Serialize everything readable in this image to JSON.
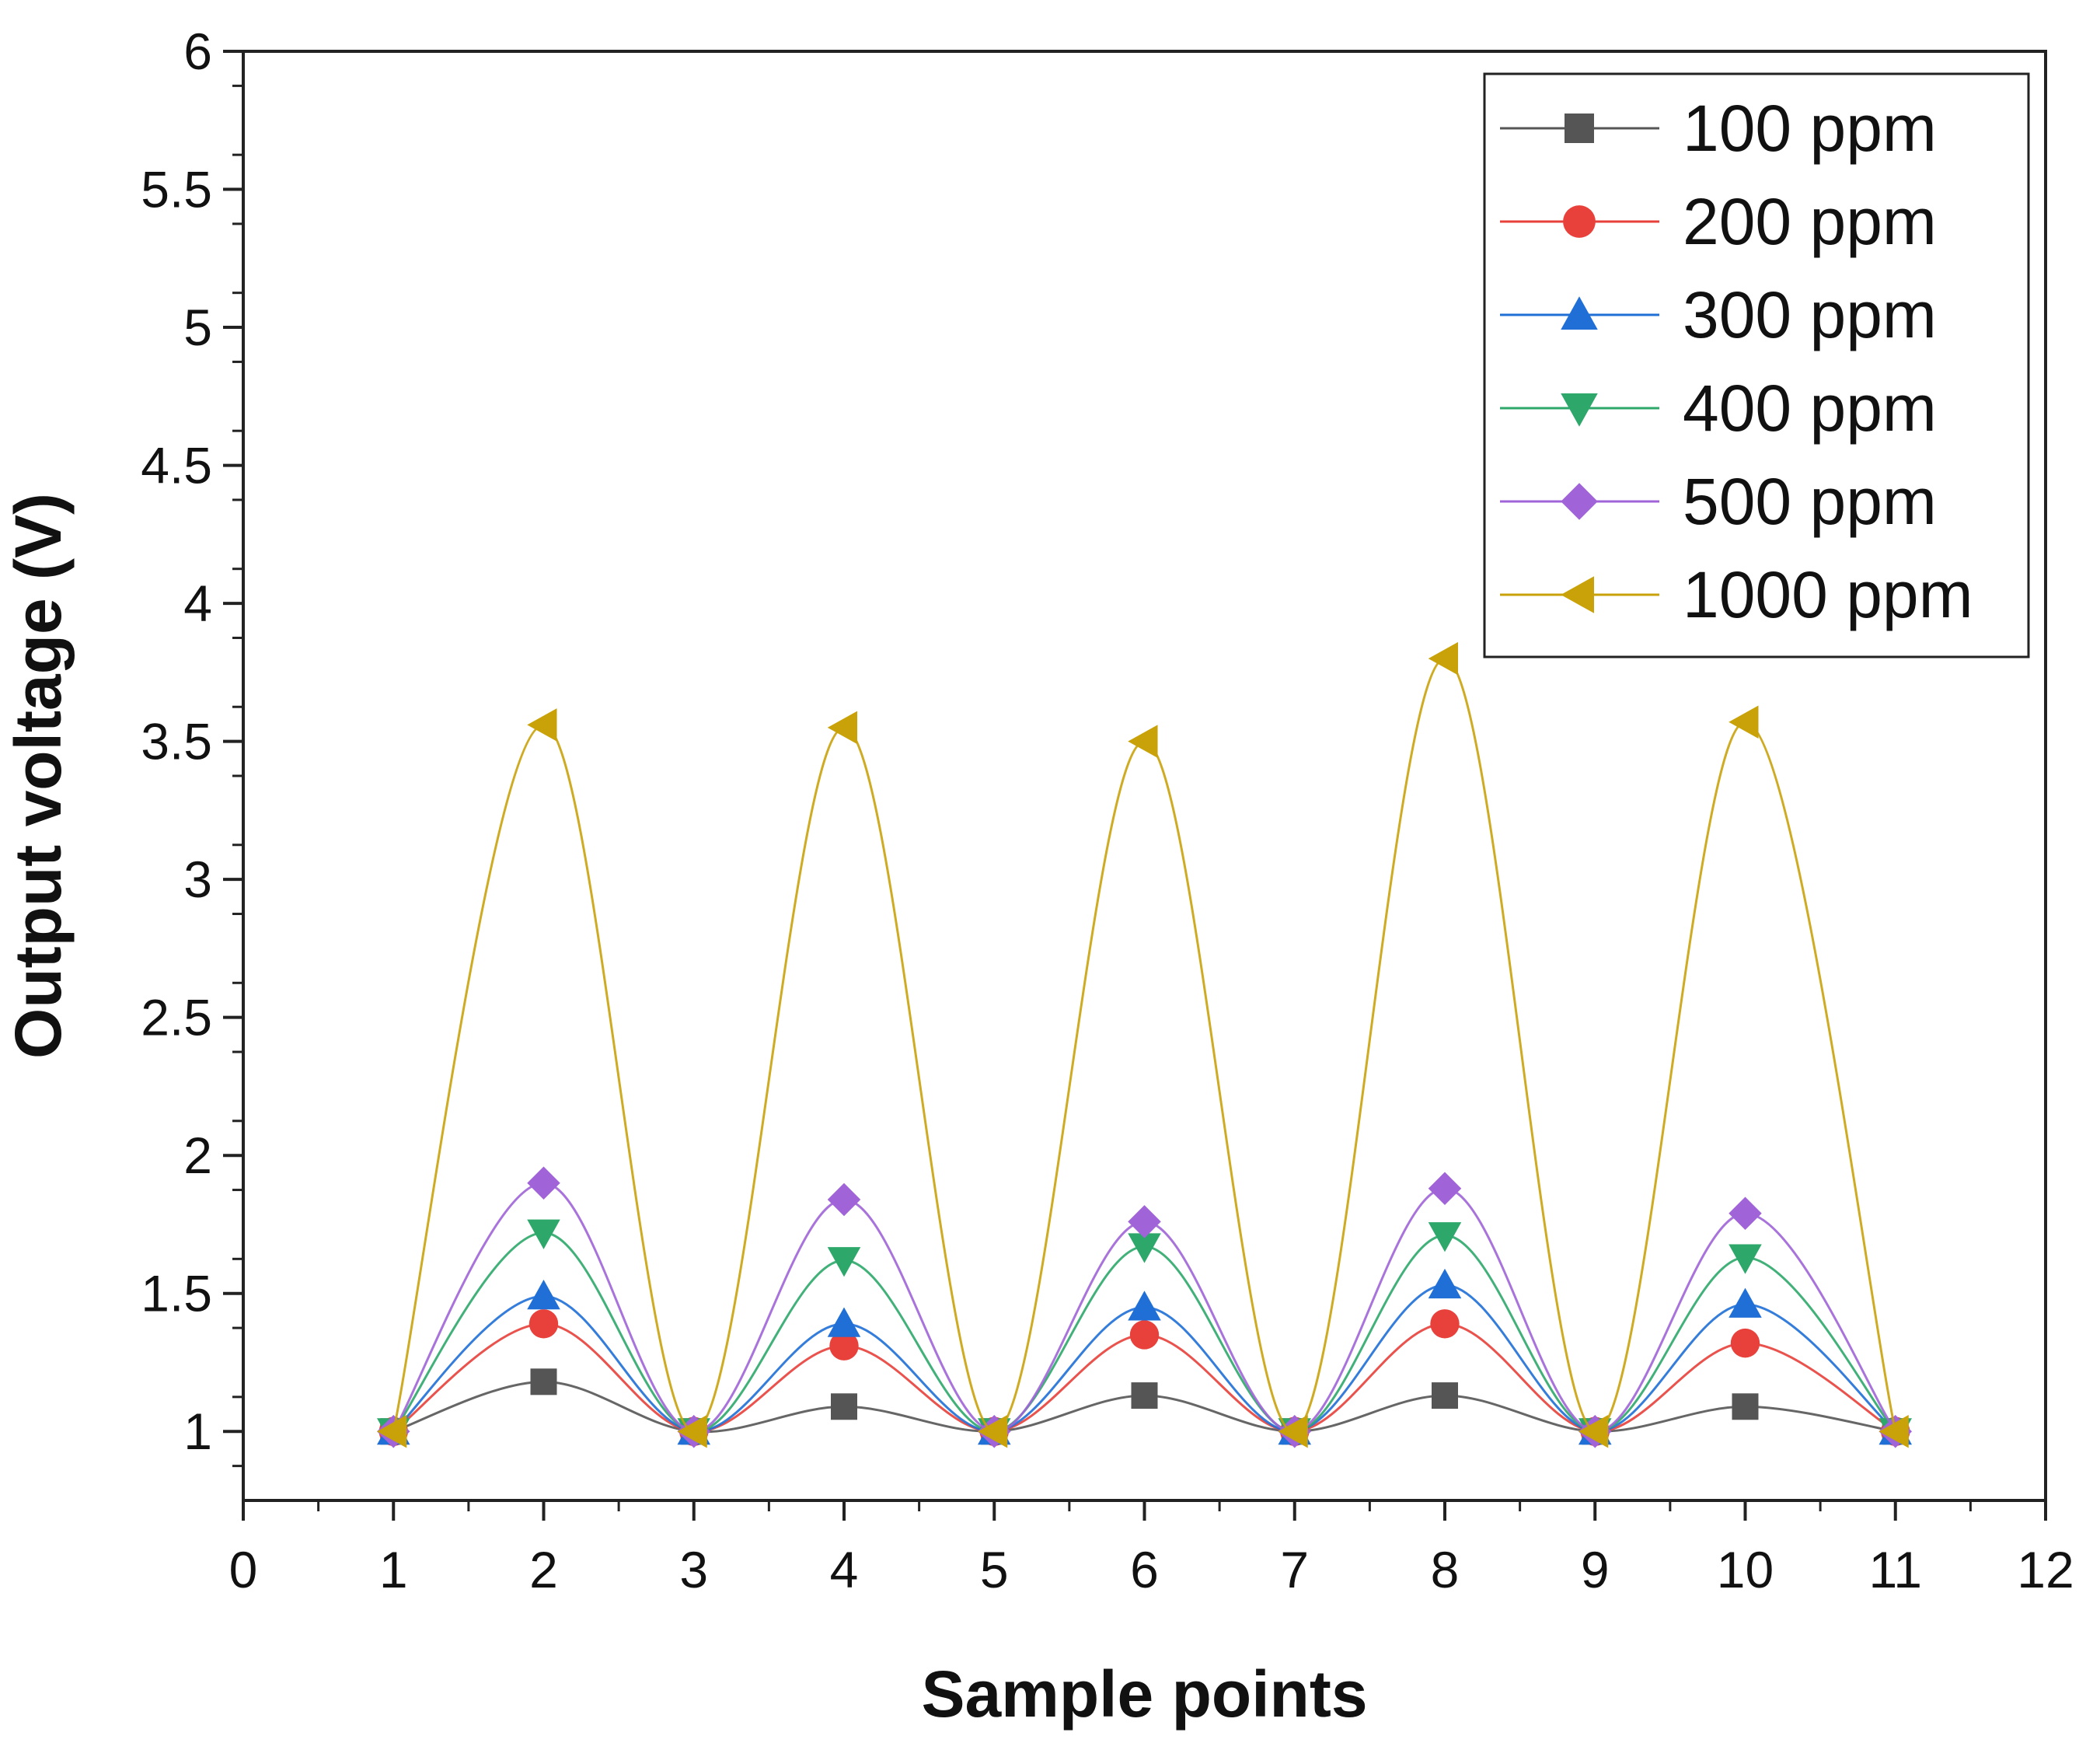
{
  "chart_data": {
    "type": "line",
    "title": "",
    "xlabel": "Sample points",
    "ylabel": "Output voltage (V)",
    "xlim": [
      0,
      12
    ],
    "ylim": [
      0.75,
      6
    ],
    "x_ticks": [
      "0",
      "1",
      "2",
      "3",
      "4",
      "5",
      "6",
      "7",
      "8",
      "9",
      "10",
      "11",
      "12"
    ],
    "y_ticks": [
      "1",
      "1.5",
      "2",
      "2.5",
      "3",
      "3.5",
      "4",
      "4.5",
      "5",
      "5.5",
      "6"
    ],
    "grid": false,
    "legend_position": "top-right",
    "x": [
      1,
      2,
      3,
      4,
      5,
      6,
      7,
      8,
      9,
      10,
      11
    ],
    "series": [
      {
        "name": "100 ppm",
        "color": "#555555",
        "marker": "square",
        "values": [
          1.0,
          1.18,
          1.0,
          1.09,
          1.0,
          1.13,
          1.0,
          1.13,
          1.0,
          1.09,
          1.0
        ]
      },
      {
        "name": "200 ppm",
        "color": "#e8403a",
        "marker": "circle",
        "values": [
          1.0,
          1.39,
          1.0,
          1.31,
          1.0,
          1.35,
          1.0,
          1.39,
          1.0,
          1.32,
          1.0
        ]
      },
      {
        "name": "300 ppm",
        "color": "#1f6fd6",
        "marker": "triangle-up",
        "values": [
          1.0,
          1.49,
          1.0,
          1.39,
          1.0,
          1.45,
          1.0,
          1.53,
          1.0,
          1.46,
          1.0
        ]
      },
      {
        "name": "400 ppm",
        "color": "#2ea86a",
        "marker": "triangle-down",
        "values": [
          1.0,
          1.72,
          1.0,
          1.62,
          1.0,
          1.67,
          1.0,
          1.71,
          1.0,
          1.63,
          1.0
        ]
      },
      {
        "name": "500 ppm",
        "color": "#a064d8",
        "marker": "diamond",
        "values": [
          1.0,
          1.9,
          1.0,
          1.84,
          1.0,
          1.76,
          1.0,
          1.88,
          1.0,
          1.79,
          1.0
        ]
      },
      {
        "name": "1000 ppm",
        "color": "#c9a20a",
        "marker": "triangle-left",
        "values": [
          1.0,
          3.56,
          1.0,
          3.55,
          1.0,
          3.5,
          1.0,
          3.8,
          1.0,
          3.57,
          1.0
        ]
      }
    ]
  }
}
